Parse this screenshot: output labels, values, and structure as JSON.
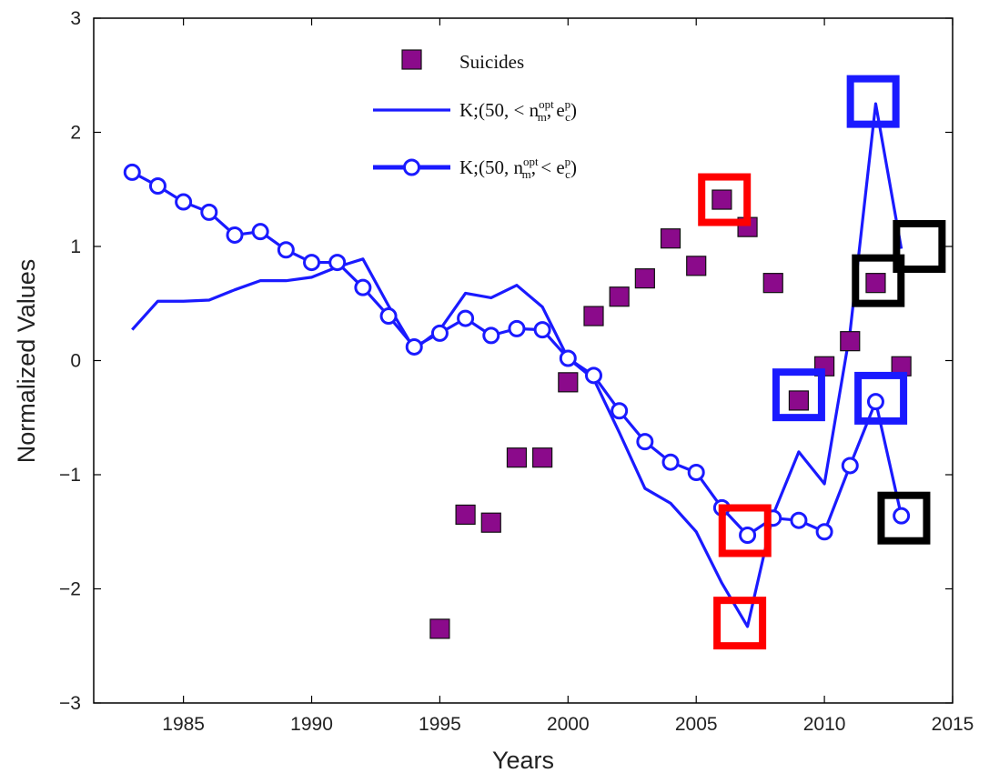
{
  "chart_data": {
    "type": "line",
    "title": "",
    "xlabel": "Years",
    "ylabel": "Normalized Values",
    "xlim": [
      1981.5,
      2015
    ],
    "ylim": [
      -3,
      3
    ],
    "x_ticks": [
      1985,
      1990,
      1995,
      2000,
      2005,
      2010,
      2015
    ],
    "y_ticks": [
      -3,
      -2,
      -1,
      0,
      1,
      2,
      3
    ],
    "x_tick_labels": [
      "1985",
      "1990",
      "1995",
      "2000",
      "2005",
      "2010",
      "2015"
    ],
    "y_tick_labels": [
      "−3",
      "−2",
      "−1",
      "0",
      "1",
      "2",
      "3"
    ],
    "grid": false,
    "legend_position": "top-center",
    "colors": {
      "suicides": "#8b0a8b",
      "line": "#1a1aff",
      "marker_face": "#ffffff",
      "box_red": "#ff0000",
      "box_blue": "#1a1aff",
      "box_black": "#000000"
    },
    "legend": [
      {
        "label": "Suicides",
        "marker": "square"
      },
      {
        "label_base": "K;(50, < n",
        "label_sup": "opt",
        "label_sub": "m",
        "label_tail": ", e",
        "label_tail_sup": "p",
        "label_tail_sub": "c",
        "label_end": ")",
        "marker": "line"
      },
      {
        "label_base": "K;(50, n",
        "label_sup": "opt",
        "label_sub": "m",
        "label_tail": ", < e",
        "label_tail_sup": "p",
        "label_tail_sub": "c",
        "label_end": ")",
        "marker": "line-circle"
      }
    ],
    "series": [
      {
        "name": "Suicides",
        "style": "square-marker",
        "x": [
          1995,
          1996,
          1997,
          1998,
          1999,
          2000,
          2001,
          2002,
          2003,
          2004,
          2005,
          2006,
          2007,
          2008,
          2009,
          2010,
          2011,
          2012,
          2013
        ],
        "y": [
          -2.35,
          -1.35,
          -1.42,
          -0.85,
          -0.85,
          -0.19,
          0.39,
          0.56,
          0.72,
          1.07,
          0.83,
          1.41,
          1.17,
          0.68,
          -0.35,
          -0.05,
          0.17,
          0.68,
          -0.05
        ]
      },
      {
        "name": "K;(50, < n_m^opt, e_c^p)",
        "style": "line",
        "x": [
          1983,
          1984,
          1985,
          1986,
          1987,
          1988,
          1989,
          1990,
          1991,
          1992,
          1993,
          1994,
          1995,
          1996,
          1997,
          1998,
          1999,
          2000,
          2001,
          2002,
          2003,
          2004,
          2005,
          2006,
          2007,
          2008,
          2009,
          2010,
          2011,
          2012,
          2013
        ],
        "y": [
          0.27,
          0.52,
          0.52,
          0.53,
          0.62,
          0.7,
          0.7,
          0.73,
          0.82,
          0.89,
          0.48,
          0.1,
          0.27,
          0.59,
          0.55,
          0.66,
          0.47,
          0.02,
          -0.16,
          -0.63,
          -1.12,
          -1.25,
          -1.5,
          -1.95,
          -2.33,
          -1.35,
          -0.8,
          -1.08,
          0.25,
          2.25,
          0.98
        ]
      },
      {
        "name": "K;(50, n_m^opt, < e_c^p)",
        "style": "line-circle",
        "x": [
          1983,
          1984,
          1985,
          1986,
          1987,
          1988,
          1989,
          1990,
          1991,
          1992,
          1993,
          1994,
          1995,
          1996,
          1997,
          1998,
          1999,
          2000,
          2001,
          2002,
          2003,
          2004,
          2005,
          2006,
          2007,
          2008,
          2009,
          2010,
          2011,
          2012,
          2013
        ],
        "y": [
          1.65,
          1.53,
          1.39,
          1.3,
          1.1,
          1.13,
          0.97,
          0.86,
          0.86,
          0.64,
          0.39,
          0.12,
          0.24,
          0.37,
          0.22,
          0.28,
          0.27,
          0.02,
          -0.13,
          -0.44,
          -0.71,
          -0.89,
          -0.98,
          -1.29,
          -1.53,
          -1.38,
          -1.4,
          -1.5,
          -0.92,
          -0.36,
          -1.36
        ]
      }
    ],
    "annotations": [
      {
        "shape": "box",
        "color": "red",
        "x": 2006.1,
        "y": 1.41
      },
      {
        "shape": "box",
        "color": "red",
        "x": 2006.9,
        "y": -1.49
      },
      {
        "shape": "box",
        "color": "red",
        "x": 2006.7,
        "y": -2.3
      },
      {
        "shape": "box",
        "color": "blue",
        "x": 2011.9,
        "y": 2.27
      },
      {
        "shape": "box",
        "color": "blue",
        "x": 2009.0,
        "y": -0.3
      },
      {
        "shape": "box",
        "color": "blue",
        "x": 2012.2,
        "y": -0.33
      },
      {
        "shape": "box",
        "color": "black",
        "x": 2013.7,
        "y": 1.0
      },
      {
        "shape": "box",
        "color": "black",
        "x": 2012.1,
        "y": 0.7
      },
      {
        "shape": "box",
        "color": "black",
        "x": 2013.1,
        "y": -1.38
      }
    ]
  }
}
